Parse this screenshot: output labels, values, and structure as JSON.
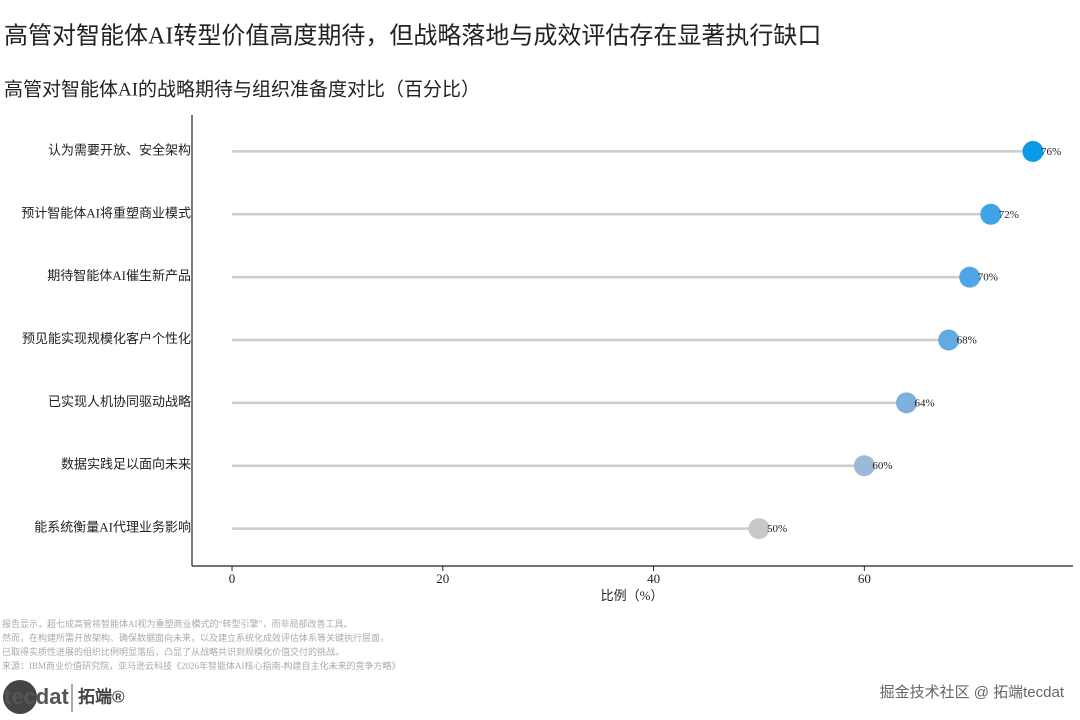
{
  "chart_data": {
    "type": "lollipop",
    "title": "高管对智能体AI转型价值高度期待，但战略落地与成效评估存在显著执行缺口",
    "subtitle": "高管对智能体AI的战略期待与组织准备度对比（百分比）",
    "x_label": "比例（%）",
    "categories": [
      "认为需要开放、安全架构",
      "预计智能体AI将重塑商业模式",
      "期待智能体AI催生新产品",
      "预见能实现规模化客户个性化",
      "已实现人机协同驱动战略",
      "数据实践足以面向未来",
      "能系统衡量AI代理业务影响"
    ],
    "values": [
      76,
      72,
      70,
      68,
      64,
      60,
      50
    ],
    "value_labels": [
      "76%",
      "72%",
      "70%",
      "68%",
      "64%",
      "60%",
      "50%"
    ],
    "colors": [
      "#0b9be6",
      "#3ea3e8",
      "#4fa6e6",
      "#62aae2",
      "#7eb0de",
      "#9cb9d8",
      "#c8c8c8"
    ],
    "stem_color": "#cccccc",
    "xlim": [
      -3.8,
      79.8
    ],
    "xticks": [
      0,
      20,
      40,
      60
    ],
    "notes": [
      "报告显示，超七成高管将智能体AI视为重塑商业模式的“转型引擎”，而非局部改善工具。",
      "然而，在构建所需开放架构、确保数据面向未来，以及建立系统化成效评估体系等关键执行层面，",
      "已取得实质性进展的组织比例明显落后，凸显了从战略共识到规模化价值交付的挑战。",
      "来源：IBM商业价值研究院，亚马逊云科技《2026年智能体AI核心指南-构建自主化未来的竞争方略》"
    ],
    "logo": {
      "text": "tecdat",
      "brand": "拓端®"
    },
    "watermark": "掘金技术社区 @ 拓端tecdat"
  }
}
